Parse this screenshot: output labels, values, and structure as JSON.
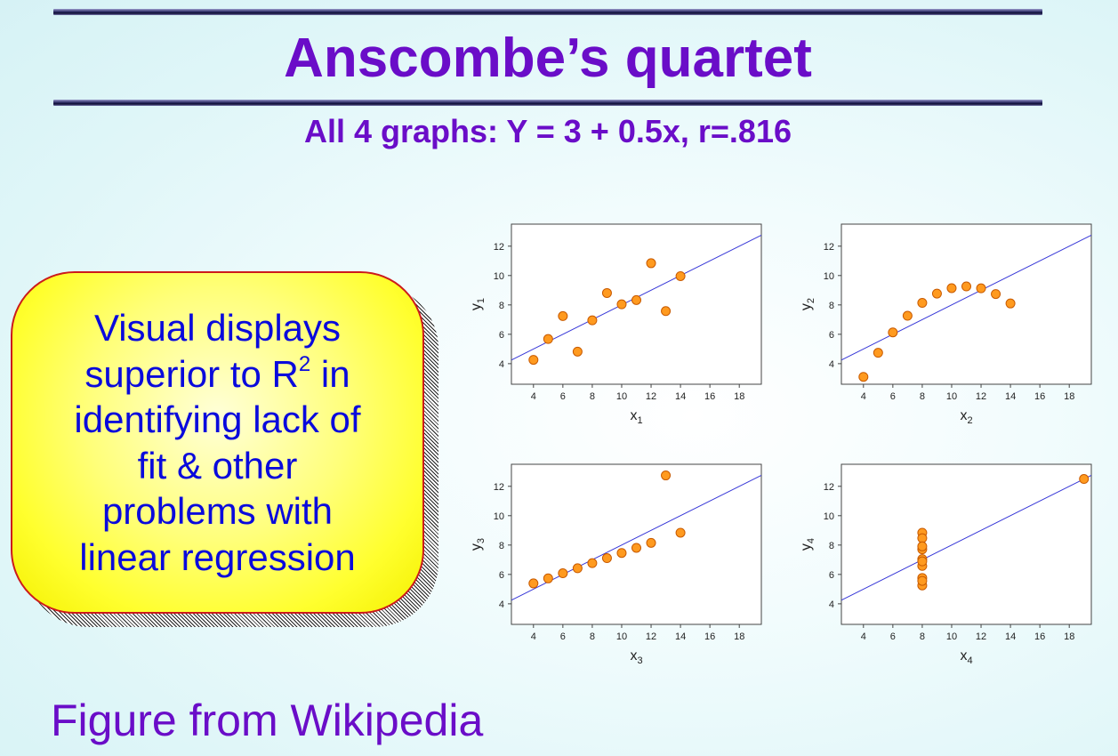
{
  "title": "Anscombe’s quartet",
  "subtitle": "All 4 graphs: Y = 3 + 0.5x, r=.816",
  "callout": {
    "lines": [
      "Visual displays",
      "superior to R",
      "2",
      " in",
      "identifying lack of",
      "fit & other",
      "problems with",
      "linear regression"
    ]
  },
  "source_note": "Figure from Wikipedia",
  "colors": {
    "title": "#6a0dc8",
    "callout_text": "#0a0adc",
    "point_fill": "#ff9a1f",
    "point_stroke": "#c85a00",
    "fit_line": "#3a3ad8"
  },
  "chart_data": [
    {
      "type": "scatter",
      "xlabel": "x",
      "xlabel_sub": "1",
      "ylabel": "y",
      "ylabel_sub": "1",
      "xlim": [
        2.5,
        19.5
      ],
      "ylim": [
        2.6,
        13.5
      ],
      "xticks": [
        4,
        6,
        8,
        10,
        12,
        14,
        16,
        18
      ],
      "yticks": [
        4,
        6,
        8,
        10,
        12
      ],
      "grid": false,
      "fit_line": {
        "intercept": 3,
        "slope": 0.5
      },
      "points": [
        [
          10,
          8.04
        ],
        [
          8,
          6.95
        ],
        [
          13,
          7.58
        ],
        [
          9,
          8.81
        ],
        [
          11,
          8.33
        ],
        [
          14,
          9.96
        ],
        [
          6,
          7.24
        ],
        [
          4,
          4.26
        ],
        [
          12,
          10.84
        ],
        [
          7,
          4.82
        ],
        [
          5,
          5.68
        ]
      ]
    },
    {
      "type": "scatter",
      "xlabel": "x",
      "xlabel_sub": "2",
      "ylabel": "y",
      "ylabel_sub": "2",
      "xlim": [
        2.5,
        19.5
      ],
      "ylim": [
        2.6,
        13.5
      ],
      "xticks": [
        4,
        6,
        8,
        10,
        12,
        14,
        16,
        18
      ],
      "yticks": [
        4,
        6,
        8,
        10,
        12
      ],
      "grid": false,
      "fit_line": {
        "intercept": 3,
        "slope": 0.5
      },
      "points": [
        [
          10,
          9.14
        ],
        [
          8,
          8.14
        ],
        [
          13,
          8.74
        ],
        [
          9,
          8.77
        ],
        [
          11,
          9.26
        ],
        [
          14,
          8.1
        ],
        [
          6,
          6.13
        ],
        [
          4,
          3.1
        ],
        [
          12,
          9.13
        ],
        [
          7,
          7.26
        ],
        [
          5,
          4.74
        ]
      ]
    },
    {
      "type": "scatter",
      "xlabel": "x",
      "xlabel_sub": "3",
      "ylabel": "y",
      "ylabel_sub": "3",
      "xlim": [
        2.5,
        19.5
      ],
      "ylim": [
        2.6,
        13.5
      ],
      "xticks": [
        4,
        6,
        8,
        10,
        12,
        14,
        16,
        18
      ],
      "yticks": [
        4,
        6,
        8,
        10,
        12
      ],
      "grid": false,
      "fit_line": {
        "intercept": 3,
        "slope": 0.5
      },
      "points": [
        [
          10,
          7.46
        ],
        [
          8,
          6.77
        ],
        [
          13,
          12.74
        ],
        [
          9,
          7.11
        ],
        [
          11,
          7.81
        ],
        [
          14,
          8.84
        ],
        [
          6,
          6.08
        ],
        [
          4,
          5.39
        ],
        [
          12,
          8.15
        ],
        [
          7,
          6.42
        ],
        [
          5,
          5.73
        ]
      ]
    },
    {
      "type": "scatter",
      "xlabel": "x",
      "xlabel_sub": "4",
      "ylabel": "y",
      "ylabel_sub": "4",
      "xlim": [
        2.5,
        19.5
      ],
      "ylim": [
        2.6,
        13.5
      ],
      "xticks": [
        4,
        6,
        8,
        10,
        12,
        14,
        16,
        18
      ],
      "yticks": [
        4,
        6,
        8,
        10,
        12
      ],
      "grid": false,
      "fit_line": {
        "intercept": 3,
        "slope": 0.5
      },
      "points": [
        [
          8,
          6.58
        ],
        [
          8,
          5.76
        ],
        [
          8,
          7.71
        ],
        [
          8,
          8.84
        ],
        [
          8,
          8.47
        ],
        [
          8,
          7.04
        ],
        [
          8,
          5.25
        ],
        [
          19,
          12.5
        ],
        [
          8,
          5.56
        ],
        [
          8,
          7.91
        ],
        [
          8,
          6.89
        ]
      ]
    }
  ]
}
